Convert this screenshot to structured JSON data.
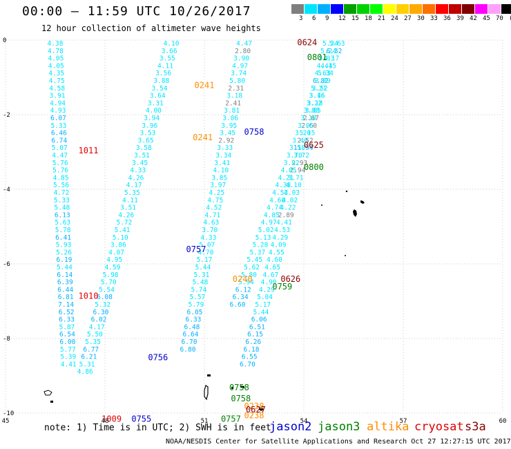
{
  "title": "00:00 – 11:59 UTC 10/26/2017",
  "subtitle": "12 hour collection of altimeter wave heights",
  "colorbar": {
    "colors": [
      "#7f7f7f",
      "#00e5ff",
      "#00b0ff",
      "#0000ff",
      "#00a000",
      "#00d200",
      "#00ff00",
      "#ffff00",
      "#ffd000",
      "#ffaa00",
      "#ff7000",
      "#ff0000",
      "#c00000",
      "#800000",
      "#ff00ff",
      "#ffa0ff",
      "#000000"
    ],
    "labels": [
      "3",
      "6",
      "9",
      "12",
      "15",
      "18",
      "21",
      "24",
      "27",
      "30",
      "33",
      "36",
      "39",
      "42",
      "45",
      "70",
      "(ft)"
    ]
  },
  "map": {
    "lon_ticks": [
      "45",
      "48",
      "51",
      "54",
      "57",
      "60"
    ],
    "lat_ticks": [
      "0",
      "-2",
      "-4",
      "-6",
      "-8",
      "-10"
    ],
    "land_color": "#000000",
    "grid_color": "#c8c8c8"
  },
  "chart_data": {
    "type": "scatter",
    "title": "12 hour collection of altimeter wave heights",
    "x_range": [
      45,
      60
    ],
    "y_range": [
      -10,
      0
    ],
    "units": "ft",
    "satellites": [
      {
        "name": "jason2",
        "color": "#0000cc"
      },
      {
        "name": "jason3",
        "color": "#008000"
      },
      {
        "name": "altika",
        "color": "#ff8c00"
      },
      {
        "name": "cryosat",
        "color": "#e00000"
      },
      {
        "name": "s3a",
        "color": "#8b0000"
      }
    ],
    "track_start_lat": 0,
    "track_lat_step": -0.2,
    "tracks": [
      {
        "satellite": "cryosat",
        "lon_start": 46.5,
        "lon_end": 46.9,
        "values": [
          "4.38",
          "4.78",
          "4.05",
          "4.05",
          "4.35",
          "4.75",
          "4.58",
          "3.91",
          "4.94",
          "4.93",
          "6.07",
          "5.33",
          "6.46",
          "6.74",
          "5.07",
          "4.47",
          "5.76",
          "5.76",
          "4.85",
          "5.56",
          "4.72",
          "5.33",
          "5.48",
          "6.13",
          "5.63",
          "5.78",
          "6.41",
          "5.93",
          "5.26",
          "6.19",
          "5.44",
          "6.14",
          "6.39",
          "6.44",
          "6.81",
          "7.14",
          "6.52",
          "6.33",
          "5.87",
          "6.54",
          "6.00",
          "5.77",
          "5.39",
          "4.41"
        ]
      },
      {
        "satellite": "jason2",
        "lon_start": 50.0,
        "lon_end": 47.4,
        "values": [
          "4.10",
          "3.66",
          "3.55",
          "4.11",
          "3.56",
          "3.88",
          "3.54",
          "3.64",
          "3.31",
          "4.00",
          "3.94",
          "3.96",
          "3.53",
          "3.65",
          "3.58",
          "3.51",
          "3.45",
          "4.33",
          "4.26",
          "4.17",
          "5.35",
          "4.11",
          "3.51",
          "4.26",
          "5.72",
          "5.41",
          "5.10",
          "3.86",
          "4.07",
          "4.95",
          "4.59",
          "5.98",
          "5.70",
          "5.54",
          "6.08",
          "5.32",
          "6.30",
          "6.02",
          "4.17",
          "5.50",
          "5.35",
          "6.77",
          "6.21",
          "5.31",
          "4.86"
        ]
      },
      {
        "satellite": "altika",
        "lon_start": 52.2,
        "lon_end": 50.5,
        "values": [
          "4.47",
          "2.80",
          "3.90",
          "4.97",
          "3.74",
          "5.80",
          "2.31",
          "3.18",
          "2.41",
          "3.81",
          "3.06",
          "3.95",
          "3.45",
          "2.92",
          "3.33",
          "3.34",
          "3.41",
          "4.10",
          "3.85",
          "3.97",
          "4.25",
          "4.75",
          "4.52",
          "4.71",
          "4.63",
          "3.70",
          "4.33",
          "5.07",
          "4.70",
          "5.17",
          "5.44",
          "5.31",
          "5.48",
          "5.74",
          "5.57",
          "5.79",
          "6.05",
          "6.33",
          "6.48",
          "6.64",
          "6.70",
          "6.80"
        ]
      },
      {
        "satellite": "s3a",
        "lon_start": 54.8,
        "lon_end": 52.3,
        "values": [
          "5.34",
          "5.24",
          "3.03",
          "4.44",
          "4.63",
          "6.82",
          "5.21",
          "3.16",
          "3.18",
          "3.85",
          "2.67",
          "2.60",
          "5.15",
          "2.52",
          "11.94",
          "3.72",
          "2.93",
          "2.94",
          "3.71",
          "4.10",
          "4.03",
          "4.02",
          "4.22",
          "2.89",
          "4.41",
          "4.53",
          "4.29",
          "4.09",
          "4.55",
          "4.60",
          "4.65",
          "4.67",
          "4.90",
          "4.29",
          "5.04",
          "5.17",
          "5.44",
          "6.06",
          "6.51",
          "6.15",
          "6.26",
          "6.18",
          "6.55",
          "6.70"
        ]
      },
      {
        "satellite": "jason3",
        "lon_start": 55.0,
        "lon_end": 52.0,
        "values": [
          "5.63",
          "6.32",
          "4.17",
          "4.15",
          "5.34",
          "3.89",
          "3.52",
          "3.46",
          "3.22",
          "3.80",
          "3.10",
          "3.05",
          "3.20",
          "3.40",
          "3.58",
          "3.70",
          "3.92",
          "4.05",
          "4.21",
          "4.38",
          "4.52",
          "4.60",
          "4.74",
          "4.85",
          "4.97",
          "5.02",
          "5.13",
          "5.28",
          "5.37",
          "5.45",
          "5.62",
          "5.80",
          "5.94",
          "6.12",
          "6.34",
          "6.60"
        ]
      }
    ],
    "time_labels": [
      {
        "text": "0624",
        "satellite": "s3a",
        "lon": 54.1,
        "lat": 0.05
      },
      {
        "text": "0801",
        "satellite": "jason3",
        "lon": 54.4,
        "lat": -0.35
      },
      {
        "text": "0241",
        "satellite": "altika",
        "lon": 51.0,
        "lat": -1.1
      },
      {
        "text": "0758",
        "satellite": "jason2",
        "lon": 52.5,
        "lat": -2.35
      },
      {
        "text": "0241",
        "satellite": "altika",
        "lon": 50.95,
        "lat": -2.5
      },
      {
        "text": "1011",
        "satellite": "cryosat",
        "lon": 47.5,
        "lat": -2.85
      },
      {
        "text": "0625",
        "satellite": "s3a",
        "lon": 54.3,
        "lat": -2.7
      },
      {
        "text": "0800",
        "satellite": "jason3",
        "lon": 54.3,
        "lat": -3.3
      },
      {
        "text": "0757",
        "satellite": "jason2",
        "lon": 50.75,
        "lat": -5.5
      },
      {
        "text": "0240",
        "satellite": "altika",
        "lon": 52.15,
        "lat": -6.3
      },
      {
        "text": "0626",
        "satellite": "s3a",
        "lon": 53.6,
        "lat": -6.3
      },
      {
        "text": "0759",
        "satellite": "jason3",
        "lon": 53.35,
        "lat": -6.5
      },
      {
        "text": "1010",
        "satellite": "cryosat",
        "lon": 47.5,
        "lat": -6.75
      },
      {
        "text": "0756",
        "satellite": "jason2",
        "lon": 49.6,
        "lat": -8.4
      },
      {
        "text": "0758",
        "satellite": "jason3",
        "lon": 52.05,
        "lat": -9.2
      },
      {
        "text": "0758",
        "satellite": "jason3",
        "lon": 52.1,
        "lat": -9.5
      },
      {
        "text": "0238",
        "satellite": "altika",
        "lon": 52.5,
        "lat": -9.7
      },
      {
        "text": "0627",
        "satellite": "s3a",
        "lon": 52.55,
        "lat": -9.8
      },
      {
        "text": "0238",
        "satellite": "altika",
        "lon": 52.5,
        "lat": -9.95
      },
      {
        "text": "0757",
        "satellite": "jason3",
        "lon": 51.8,
        "lat": -10.05
      },
      {
        "text": "1009",
        "satellite": "cryosat",
        "lon": 48.2,
        "lat": -10.05
      },
      {
        "text": "0755",
        "satellite": "jason2",
        "lon": 49.1,
        "lat": -10.05
      }
    ]
  },
  "note": "note:  1) Time is in UTC;  2) SWH is in feet",
  "legend_order": [
    "jason2",
    "jason3",
    "altika",
    "cryosat",
    "s3a"
  ],
  "footer": "NOAA/NESDIS Center for Satellite Applications and Research    Oct 27 12:27:15 UTC 2017"
}
